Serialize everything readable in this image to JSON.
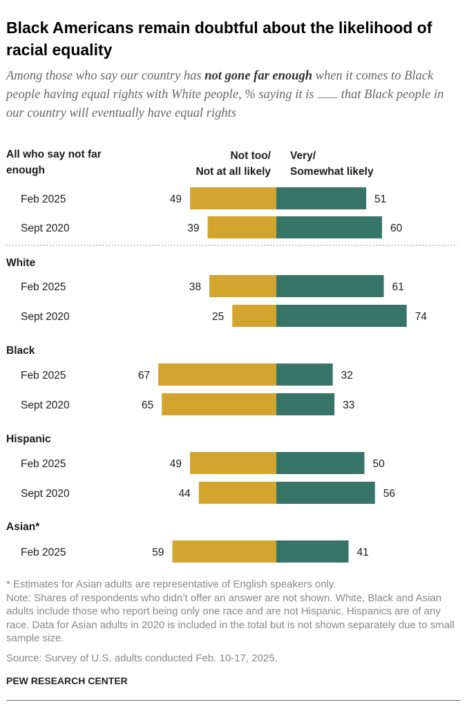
{
  "title": "Black Americans remain doubtful about the likelihood of racial equality",
  "subtitle": {
    "pre": "Among those who say our country has ",
    "bold": "not gone far enough",
    "post_1": " when it comes to Black people having equal rights with White people, % saying it is ",
    "post_2": " that Black people in our country will eventually have equal rights"
  },
  "chart_data": {
    "type": "bar",
    "orientation": "horizontal-diverging",
    "legend": [
      {
        "name": "Not too/\nNot at all likely",
        "color": "#d3a52f",
        "side": "left"
      },
      {
        "name": "Very/\nSomewhat likely",
        "color": "#377566",
        "side": "right"
      }
    ],
    "groups": [
      {
        "label": "All who say not far\nenough",
        "rows": [
          {
            "label": "Feb 2025",
            "not_likely": 49,
            "likely": 51
          },
          {
            "label": "Sept 2020",
            "not_likely": 39,
            "likely": 60
          }
        ]
      },
      {
        "label": "White",
        "rows": [
          {
            "label": "Feb 2025",
            "not_likely": 38,
            "likely": 61
          },
          {
            "label": "Sept 2020",
            "not_likely": 25,
            "likely": 74
          }
        ]
      },
      {
        "label": "Black",
        "rows": [
          {
            "label": "Feb 2025",
            "not_likely": 67,
            "likely": 32
          },
          {
            "label": "Sept 2020",
            "not_likely": 65,
            "likely": 33
          }
        ]
      },
      {
        "label": "Hispanic",
        "rows": [
          {
            "label": "Feb 2025",
            "not_likely": 49,
            "likely": 50
          },
          {
            "label": "Sept 2020",
            "not_likely": 44,
            "likely": 56
          }
        ]
      },
      {
        "label": "Asian*",
        "rows": [
          {
            "label": "Feb 2025",
            "not_likely": 59,
            "likely": 41
          }
        ]
      }
    ]
  },
  "notes": {
    "asterisk": "* Estimates for Asian adults are representative of English speakers only.",
    "note": "Note: Shares of respondents who didn’t offer an answer are not shown. White, Black and Asian adults include those who report being only one race and are not Hispanic. Hispanics are of any race. Data for Asian adults in 2020 is included in the total but is not shown separately due to small sample size.",
    "source": "Source: Survey of U.S. adults conducted Feb. 10-17, 2025."
  },
  "footer": "PEW RESEARCH CENTER"
}
